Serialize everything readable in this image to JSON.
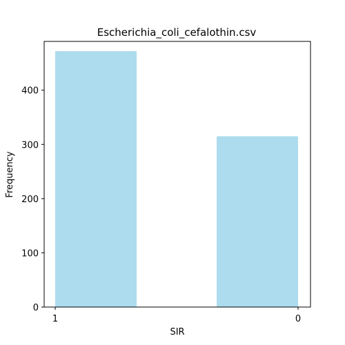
{
  "chart_data": {
    "type": "bar",
    "title": "Escherichia_coli_cefalothin.csv",
    "xlabel": "SIR",
    "ylabel": "Frequency",
    "categories": [
      "1",
      "0"
    ],
    "values": [
      472,
      315
    ],
    "ylim": [
      0,
      490
    ],
    "yticks": [
      0,
      100,
      200,
      300,
      400
    ],
    "bar_color": "#ADDCEE",
    "grid": false,
    "legend": "none"
  }
}
